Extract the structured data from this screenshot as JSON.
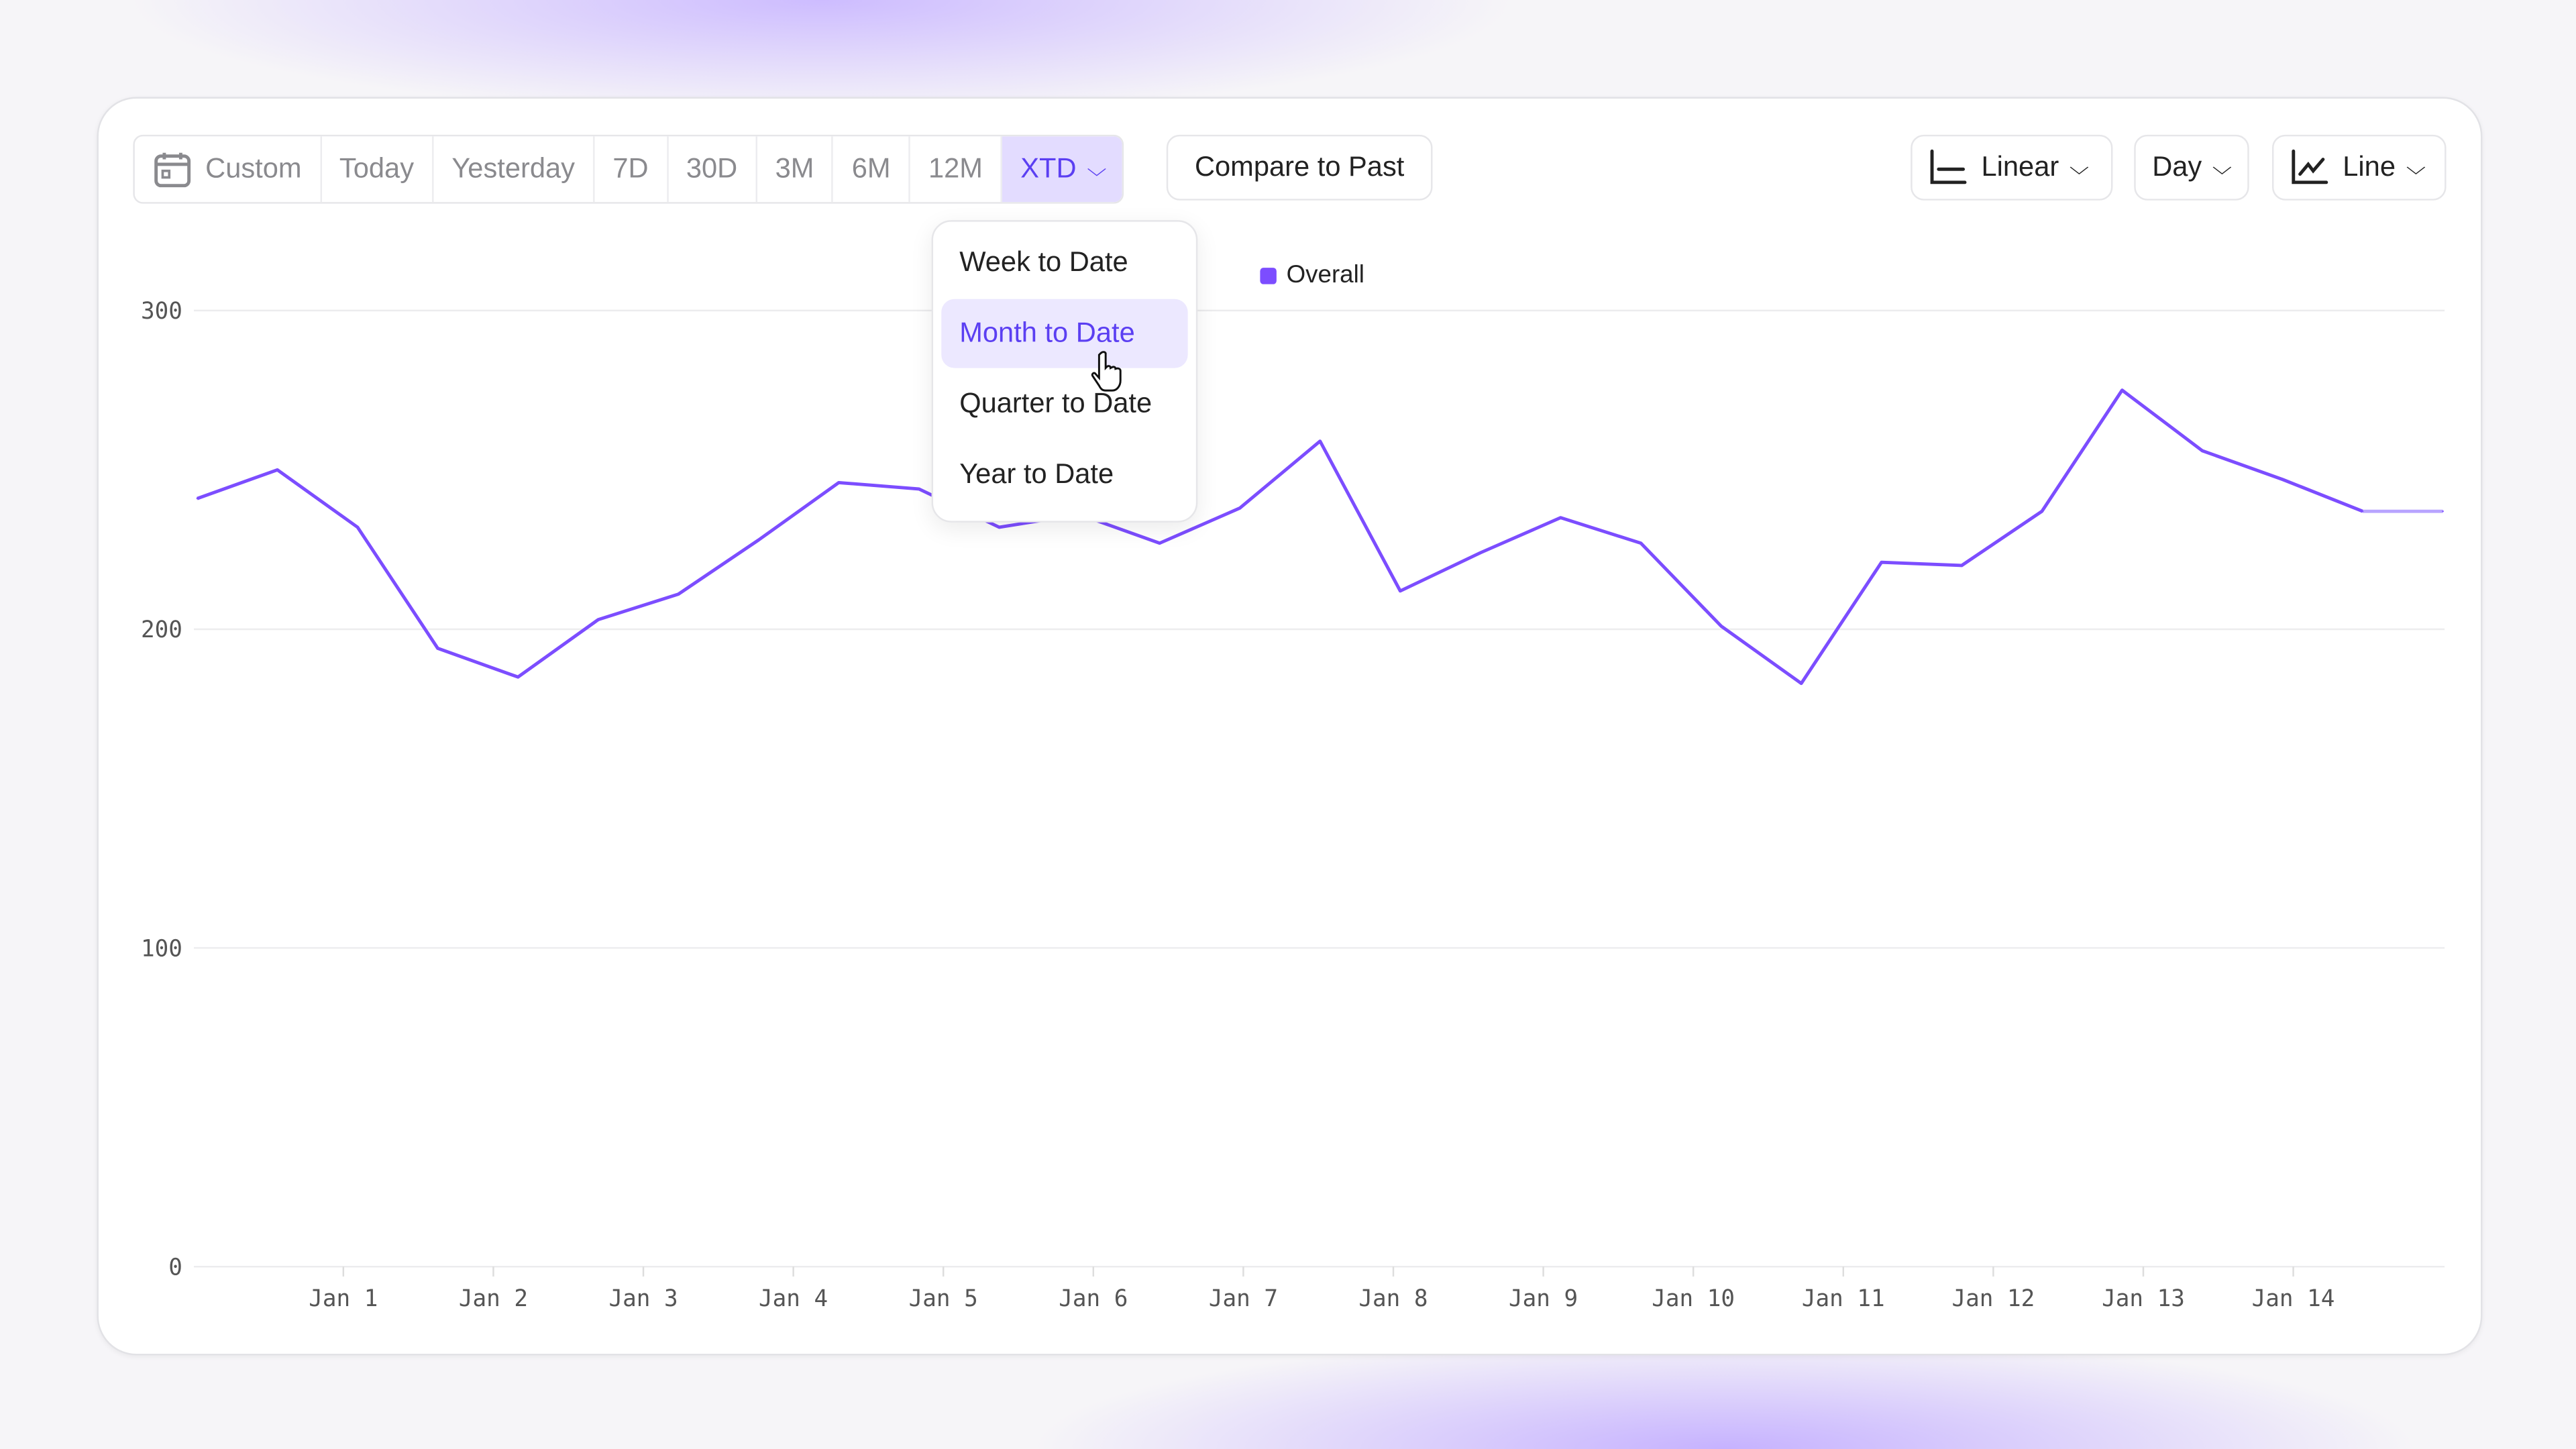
{
  "toolbar": {
    "ranges": [
      {
        "label": "Custom",
        "icon": "calendar-icon"
      },
      {
        "label": "Today"
      },
      {
        "label": "Yesterday"
      },
      {
        "label": "7D"
      },
      {
        "label": "30D"
      },
      {
        "label": "3M"
      },
      {
        "label": "6M"
      },
      {
        "label": "12M"
      },
      {
        "label": "XTD",
        "active": true
      }
    ],
    "compare_label": "Compare to Past",
    "scale_label": "Linear",
    "interval_label": "Day",
    "chart_type_label": "Line"
  },
  "xtd_menu": {
    "items": [
      "Week to Date",
      "Month to Date",
      "Quarter to Date",
      "Year to Date"
    ],
    "highlighted": "Month to Date"
  },
  "colors": {
    "accent": "#5b3ff2",
    "series": "#7c4dff"
  },
  "chart_data": {
    "type": "line",
    "legend": [
      "Overall"
    ],
    "legend_position": "top",
    "grid": true,
    "ylim": [
      0,
      300
    ],
    "yticks": [
      0,
      100,
      200,
      300
    ],
    "xticks": [
      "Jan 1",
      "Jan 2",
      "Jan 3",
      "Jan 4",
      "Jan 5",
      "Jan 6",
      "Jan 7",
      "Jan 8",
      "Jan 9",
      "Jan 10",
      "Jan 11",
      "Jan 12",
      "Jan 13",
      "Jan 14"
    ],
    "series": [
      {
        "name": "Overall",
        "values": [
          241,
          250,
          232,
          194,
          185,
          203,
          211,
          228,
          246,
          244,
          232,
          236,
          227,
          238,
          259,
          212,
          224,
          235,
          227,
          201,
          183,
          221,
          220,
          237,
          275,
          256,
          247,
          237,
          237
        ]
      }
    ]
  }
}
